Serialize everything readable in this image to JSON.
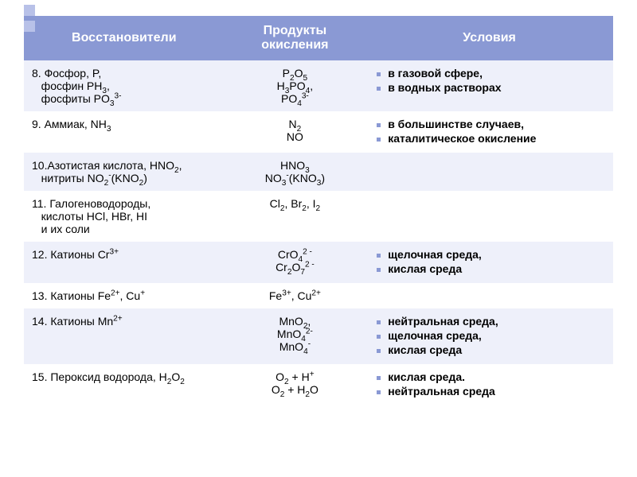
{
  "headers": [
    "Восстановители",
    "Продукты окисления",
    "Условия"
  ],
  "rows": [
    {
      "reducers": "8. Фосфор, P,<br>&nbsp;&nbsp;&nbsp;фосфин PH<sub>3</sub>,<br>&nbsp;&nbsp;&nbsp;фосфиты PO<sub>3</sub><sup>3-</sup>",
      "products": "P<sub>2</sub>O<sub>5</sub><br>H<sub>3</sub>PO<sub>4</sub>,<br>PO<sub>4</sub><sup>3-</sup>",
      "conditions": [
        "в газовой сфере,",
        "в водных растворах"
      ]
    },
    {
      "reducers": "9. Аммиак, NH<sub>3</sub>",
      "products": "N<sub>2</sub><br>NO",
      "conditions": [
        "в большинстве случаев,",
        "каталитическое окисление"
      ]
    },
    {
      "reducers": "10.Азотистая кислота, HNO<sub>2</sub>,<br>&nbsp;&nbsp;&nbsp;нитриты NO<sub>2</sub><sup>-</sup>(KNO<sub>2</sub>)",
      "products": "HNO<sub>3</sub><br>NO<sub>3</sub><sup>-</sup>(KNO<sub>3</sub>)",
      "conditions": []
    },
    {
      "reducers": "11. Галогеноводороды,<br>&nbsp;&nbsp;&nbsp;кислоты HCl, HBr, HI<br>&nbsp;&nbsp;&nbsp;и их соли",
      "products": "Cl<sub>2</sub>, Br<sub>2</sub>, I<sub>2</sub>",
      "conditions": []
    },
    {
      "reducers": "12. Катионы Cr<sup>3+</sup>",
      "products": "CrO<sub>4</sub><sup>2 -</sup><br>Cr<sub>2</sub>O<sub>7</sub><sup>2 -</sup>",
      "conditions": [
        "щелочная среда,",
        "кислая среда"
      ]
    },
    {
      "reducers": "13. Катионы Fe<sup>2+</sup>, Cu<sup>+</sup>",
      "products": "Fe<sup>3+</sup>, Cu<sup>2+</sup>",
      "conditions": []
    },
    {
      "reducers": "14. Катионы Mn<sup>2+</sup>",
      "products": "MnO<sub>2</sub>,<br>MnO<sub>4</sub><sup>2-</sup><br>MnO<sub>4</sub><sup>-</sup>",
      "conditions": [
        "нейтральная среда,",
        "щелочная среда,",
        "кислая среда"
      ]
    },
    {
      "reducers": "15. Пероксид водорода, H<sub>2</sub>O<sub>2</sub>",
      "products": "O<sub>2</sub> + H<sup>+</sup><br>O<sub>2</sub> + H<sub>2</sub>O",
      "conditions": [
        "кислая среда.",
        "нейтральная среда"
      ]
    }
  ],
  "style": {
    "header_bg": "#8a99d4",
    "header_fg": "#ffffff",
    "row_odd_bg": "#eef0fa",
    "row_even_bg": "#ffffff",
    "bullet_color": "#8a99d4",
    "font_family": "Arial",
    "header_fontsize_pt": 12,
    "body_fontsize_pt": 10.5,
    "col_widths_pct": [
      34,
      24,
      42
    ]
  }
}
